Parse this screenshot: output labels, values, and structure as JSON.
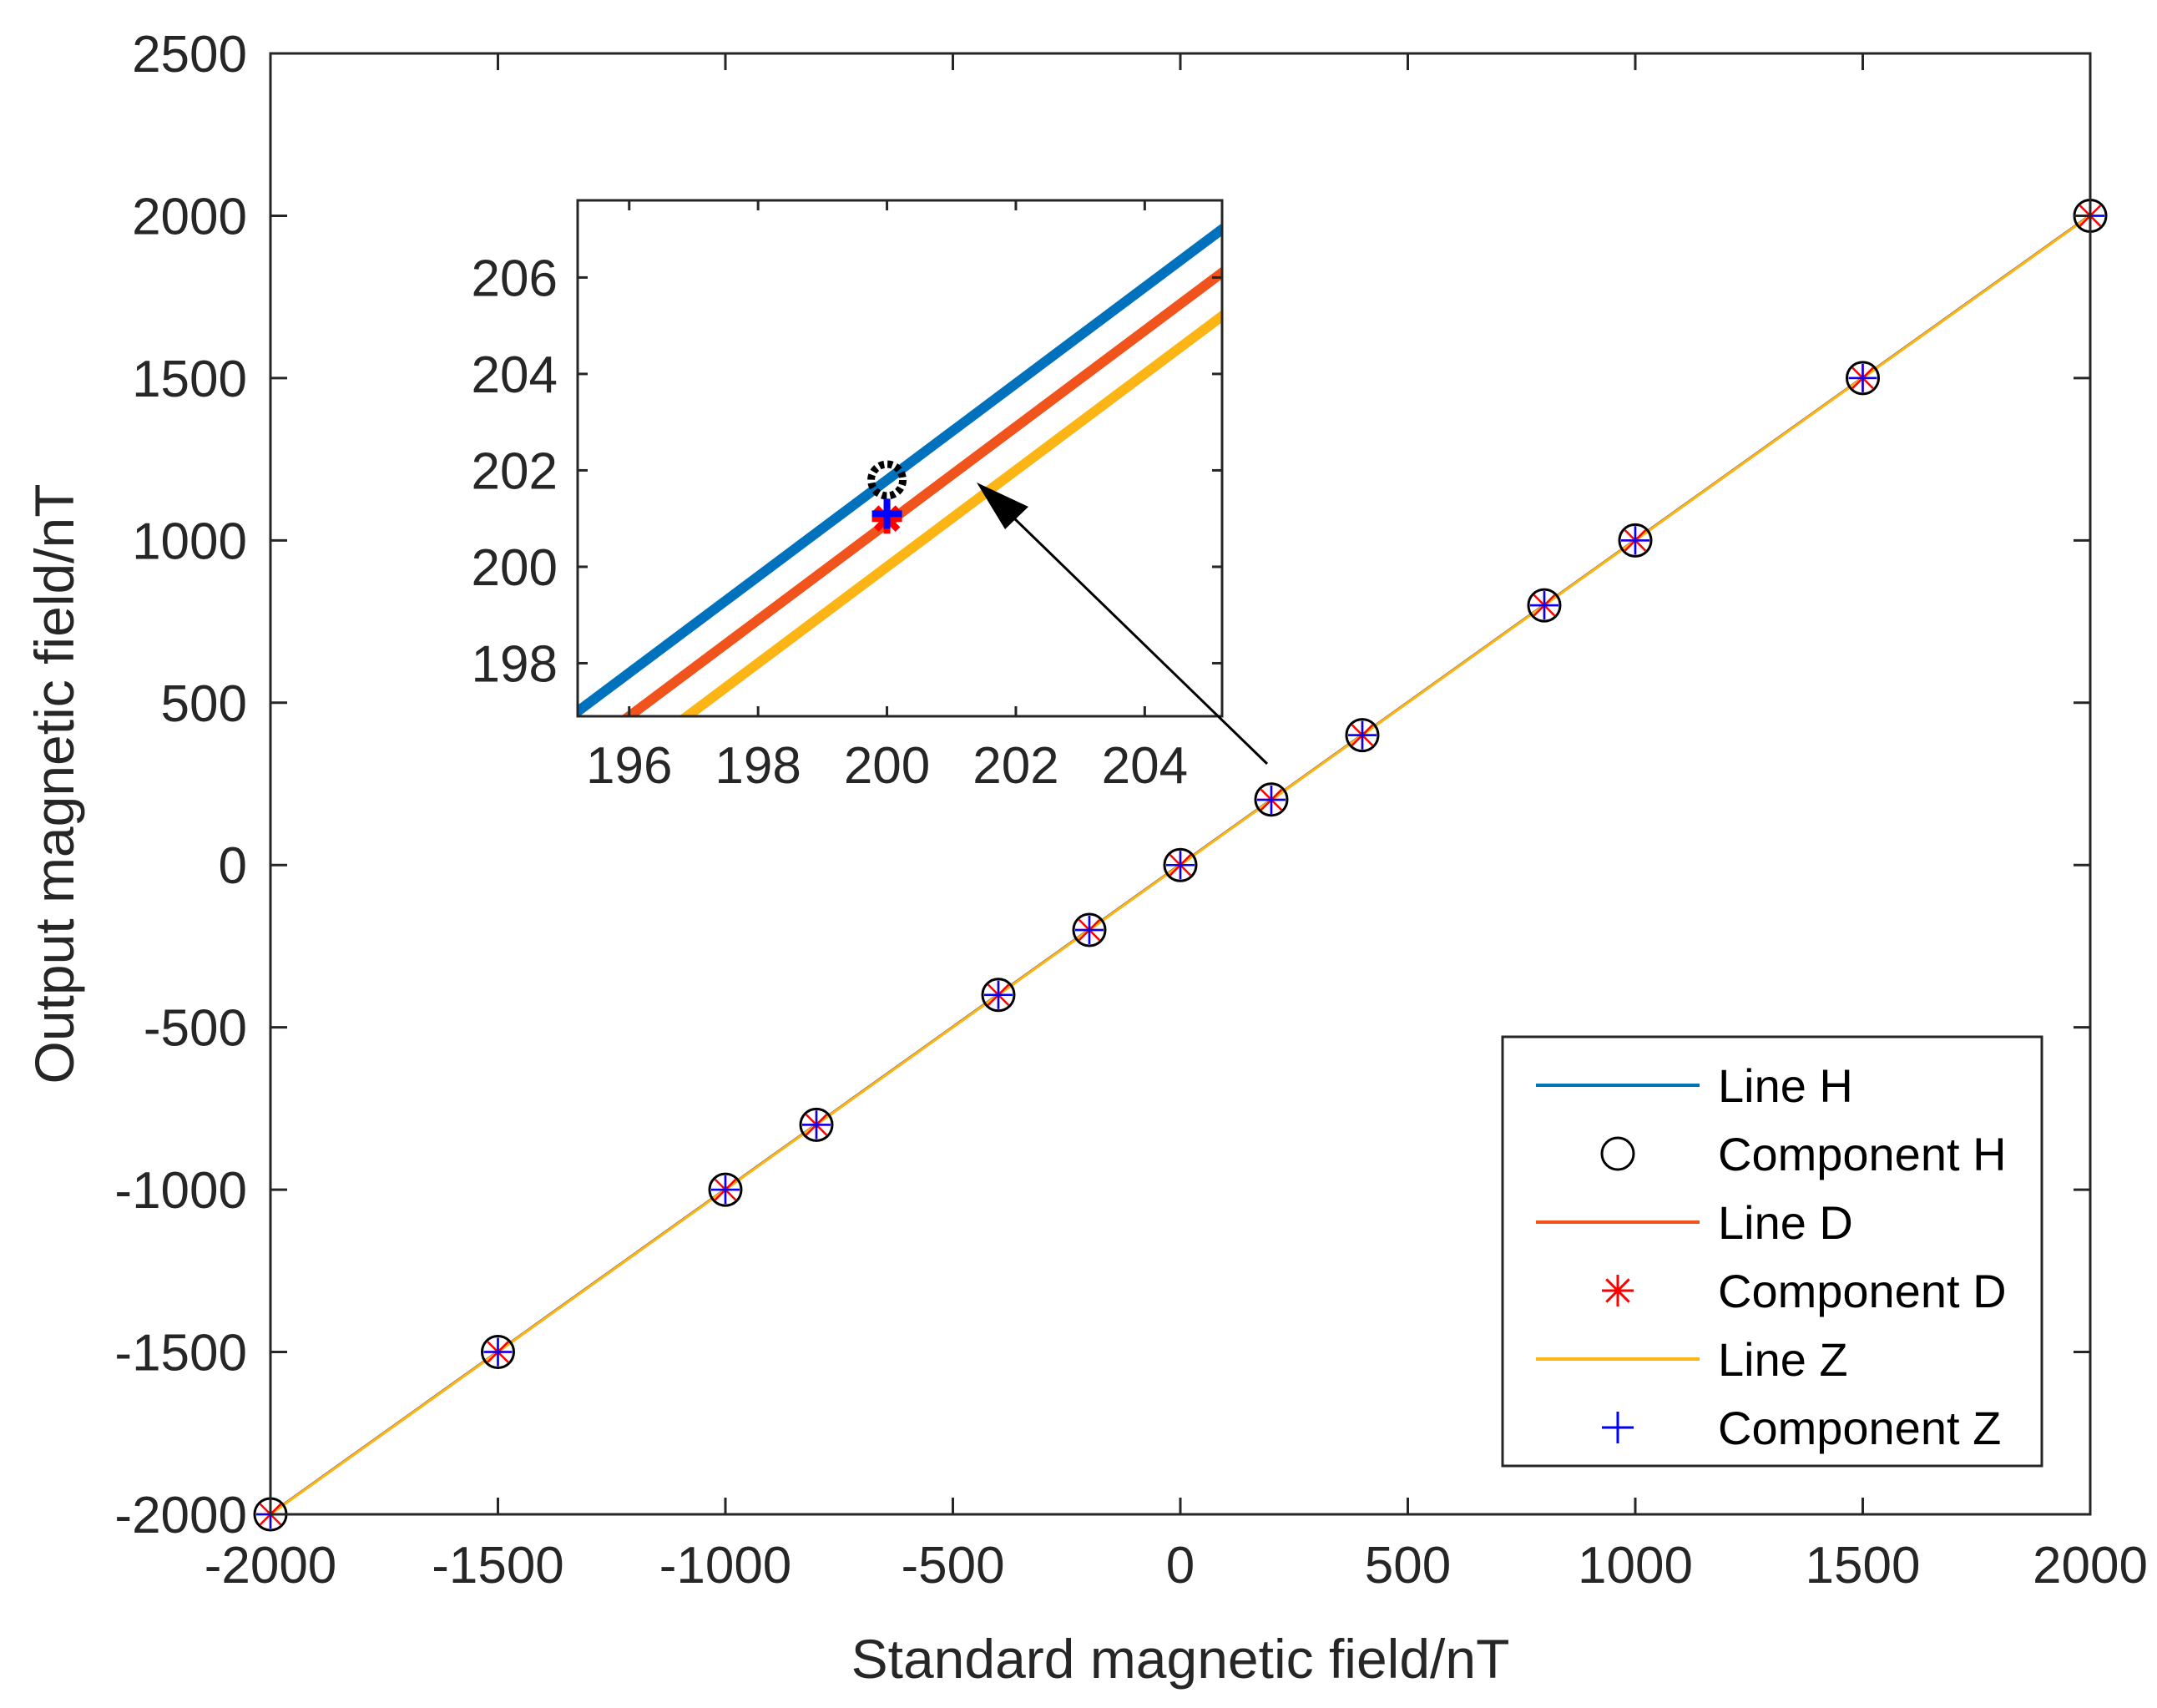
{
  "colors": {
    "line_h": "#0072BD",
    "line_d": "#F0531C",
    "line_z": "#FDB515",
    "marker_h": "#000000",
    "marker_d": "#FF0000",
    "marker_z": "#0000FF",
    "axis": "#262626",
    "arrow": "#000000"
  },
  "chart_data": {
    "type": "line",
    "xlabel": "Standard magnetic field/nT",
    "ylabel": "Output magnetic field/nT",
    "xlim": [
      -2000,
      2000
    ],
    "ylim": [
      -2000,
      2500
    ],
    "xticks": [
      -2000,
      -1500,
      -1000,
      -500,
      0,
      500,
      1000,
      1500,
      2000
    ],
    "yticks": [
      -2000,
      -1500,
      -1000,
      -500,
      0,
      500,
      1000,
      1500,
      2000,
      2500
    ],
    "x": [
      -2000,
      -1500,
      -1000,
      -800,
      -400,
      -200,
      0,
      200,
      400,
      800,
      1000,
      1500,
      2000
    ],
    "series": [
      {
        "name": "Line H",
        "kind": "line",
        "slope": 1.0,
        "intercept": 1.8,
        "color": "#0072BD"
      },
      {
        "name": "Component H",
        "kind": "marker",
        "marker": "circle",
        "color": "#000000",
        "values": [
          -2000,
          -1500,
          -1000,
          -800,
          -400,
          -200,
          0,
          201.8,
          400,
          800,
          1000,
          1500,
          2000
        ]
      },
      {
        "name": "Line D",
        "kind": "line",
        "slope": 1.0,
        "intercept": 0.9,
        "color": "#F0531C"
      },
      {
        "name": "Component D",
        "kind": "marker",
        "marker": "asterisk",
        "color": "#FF0000",
        "values": [
          -2000,
          -1500,
          -1000,
          -800,
          -400,
          -200,
          0,
          201.0,
          400,
          800,
          1000,
          1500,
          2000
        ]
      },
      {
        "name": "Line Z",
        "kind": "line",
        "slope": 1.0,
        "intercept": 0.0,
        "color": "#FDB515"
      },
      {
        "name": "Component Z",
        "kind": "marker",
        "marker": "plus",
        "color": "#0000FF",
        "values": [
          -2000,
          -1500,
          -1000,
          -800,
          -400,
          -200,
          0,
          201.1,
          400,
          800,
          1000,
          1500,
          2000
        ]
      }
    ],
    "legend": {
      "placement": "bottom-right",
      "entries": [
        "Line H",
        "Component H",
        "Line D",
        "Component D",
        "Line Z",
        "Component Z"
      ]
    },
    "inset": {
      "xlim": [
        195.2,
        205.2
      ],
      "ylim": [
        196.9,
        207.6
      ],
      "xticks": [
        196,
        198,
        200,
        202,
        204
      ],
      "yticks": [
        198,
        200,
        202,
        204,
        206
      ],
      "annotation": {
        "type": "arrow",
        "from_point": [
          200,
          200
        ],
        "description": "zoom of region near x = 200"
      }
    }
  }
}
